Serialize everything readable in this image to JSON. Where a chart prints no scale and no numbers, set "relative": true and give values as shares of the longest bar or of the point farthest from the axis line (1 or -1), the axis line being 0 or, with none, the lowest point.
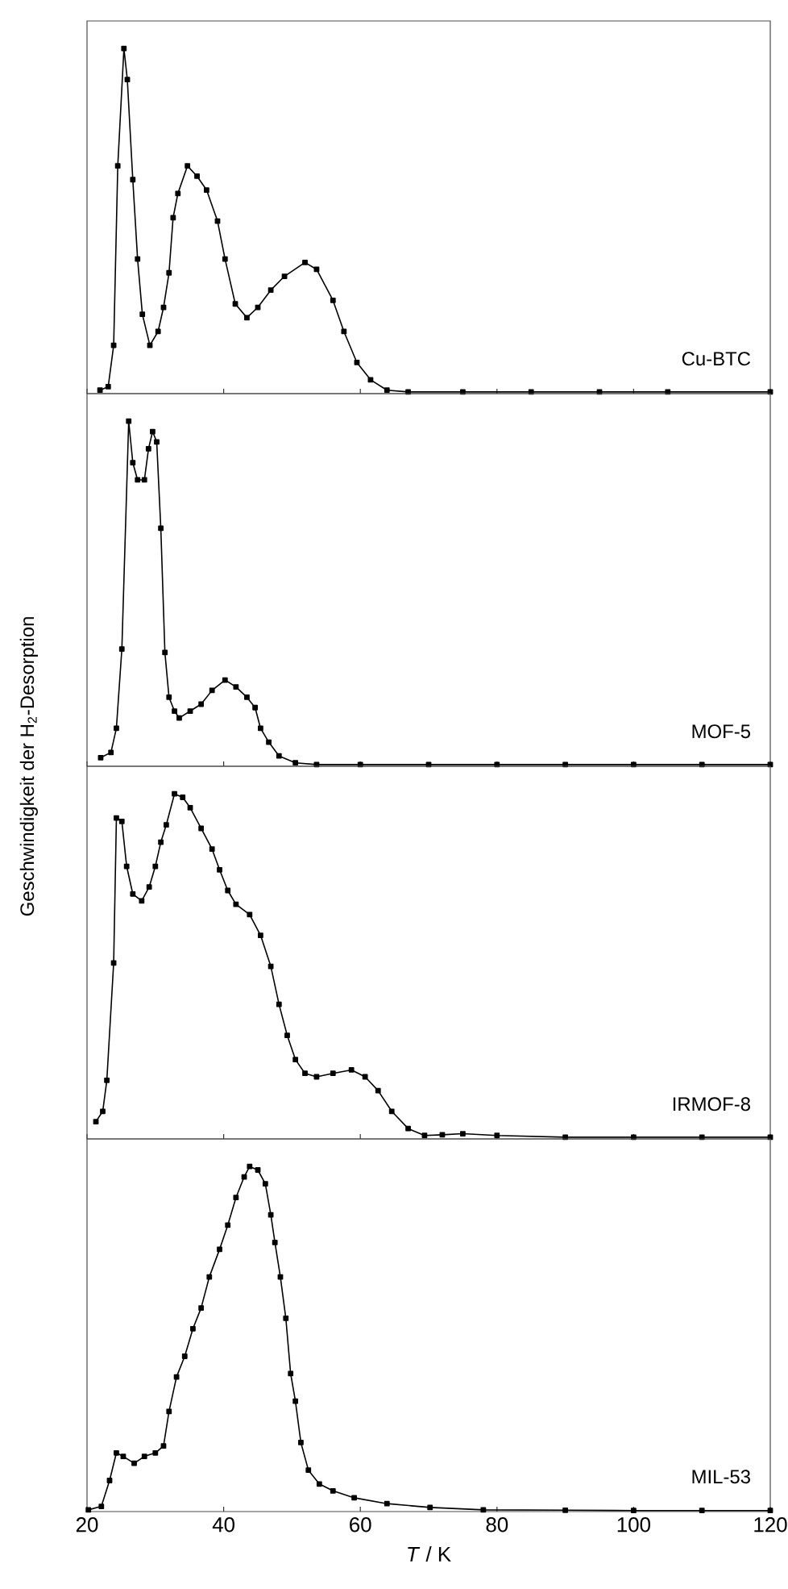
{
  "chart_data": [
    {
      "type": "line",
      "relative": true,
      "xlim": [
        20,
        120
      ],
      "xticks": [
        20,
        40,
        60,
        80,
        100,
        120
      ],
      "tick_labels": false,
      "marker": "square",
      "line_style": "solid",
      "series": [
        {
          "name": "Cu-BTC",
          "color": "#000000",
          "x": [
            21.9,
            23.1,
            23.9,
            24.5,
            25.4,
            25.9,
            26.7,
            27.4,
            28.1,
            29.2,
            30.4,
            31.2,
            32.0,
            32.6,
            33.3,
            34.7,
            36.1,
            37.5,
            39.1,
            40.2,
            41.7,
            43.4,
            45.0,
            46.9,
            48.9,
            51.9,
            53.6,
            56.0,
            57.6,
            59.5,
            61.5,
            63.9,
            67,
            75,
            85,
            95,
            105,
            120
          ],
          "values": [
            0.01,
            0.02,
            0.14,
            0.66,
            1.0,
            0.91,
            0.62,
            0.39,
            0.23,
            0.14,
            0.18,
            0.25,
            0.35,
            0.51,
            0.58,
            0.66,
            0.63,
            0.59,
            0.5,
            0.39,
            0.26,
            0.22,
            0.25,
            0.3,
            0.34,
            0.38,
            0.36,
            0.27,
            0.18,
            0.09,
            0.04,
            0.01,
            0.005,
            0.005,
            0.005,
            0.005,
            0.005,
            0.005
          ]
        }
      ]
    },
    {
      "type": "line",
      "relative": true,
      "ylabel": "Geschwindigkeit der H$_{2}$-Desorption",
      "xlim": [
        20,
        120
      ],
      "xticks": [
        20,
        40,
        60,
        80,
        100,
        120
      ],
      "tick_labels": false,
      "marker": "square",
      "line_style": "solid",
      "series": [
        {
          "name": "MOF-5",
          "color": "#000000",
          "x": [
            22.0,
            23.5,
            24.3,
            25.1,
            26.1,
            26.7,
            27.4,
            28.4,
            29.0,
            29.6,
            30.2,
            30.8,
            31.4,
            32.0,
            32.8,
            33.5,
            35.1,
            36.7,
            38.3,
            40.2,
            41.8,
            43.4,
            44.6,
            45.4,
            46.6,
            48.1,
            50.5,
            53.6,
            60,
            70,
            80,
            90,
            100,
            110,
            120
          ],
          "values": [
            0.025,
            0.04,
            0.11,
            0.34,
            1.0,
            0.88,
            0.83,
            0.83,
            0.92,
            0.97,
            0.94,
            0.69,
            0.33,
            0.2,
            0.16,
            0.14,
            0.16,
            0.18,
            0.22,
            0.25,
            0.23,
            0.2,
            0.17,
            0.11,
            0.07,
            0.03,
            0.01,
            0.005,
            0.005,
            0.005,
            0.005,
            0.005,
            0.005,
            0.005,
            0.005
          ]
        }
      ]
    },
    {
      "type": "line",
      "relative": true,
      "xlim": [
        20,
        120
      ],
      "xticks": [
        20,
        40,
        60,
        80,
        100,
        120
      ],
      "tick_labels": false,
      "marker": "square",
      "line_style": "solid",
      "series": [
        {
          "name": "IRMOF-8",
          "color": "#000000",
          "x": [
            21.3,
            22.3,
            22.9,
            23.9,
            24.3,
            25.1,
            25.8,
            26.7,
            28.0,
            29.1,
            30.0,
            30.8,
            31.6,
            32.8,
            34.0,
            35.1,
            36.7,
            38.3,
            39.4,
            40.6,
            41.8,
            43.8,
            45.4,
            46.9,
            48.1,
            49.3,
            50.5,
            51.9,
            53.6,
            56.0,
            58.7,
            60.7,
            62.6,
            64.6,
            67.0,
            69.4,
            72,
            75,
            80,
            90,
            100,
            110,
            120
          ],
          "values": [
            0.05,
            0.08,
            0.17,
            0.51,
            0.93,
            0.92,
            0.79,
            0.71,
            0.69,
            0.73,
            0.79,
            0.86,
            0.91,
            1.0,
            0.99,
            0.96,
            0.9,
            0.84,
            0.78,
            0.72,
            0.68,
            0.65,
            0.59,
            0.5,
            0.39,
            0.3,
            0.23,
            0.19,
            0.18,
            0.19,
            0.2,
            0.18,
            0.14,
            0.08,
            0.03,
            0.01,
            0.012,
            0.015,
            0.01,
            0.005,
            0.005,
            0.005,
            0.005
          ]
        }
      ]
    },
    {
      "type": "line",
      "relative": true,
      "xlabel": "*T* / K",
      "xlim": [
        20,
        120
      ],
      "xticks": [
        20,
        40,
        60,
        80,
        100,
        120
      ],
      "tick_labels": "x",
      "marker": "square",
      "line_style": "solid",
      "series": [
        {
          "name": "MIL-53",
          "color": "#000000",
          "x": [
            20.2,
            22.1,
            23.3,
            24.3,
            25.3,
            26.9,
            28.4,
            30.0,
            31.2,
            32.0,
            33.1,
            34.3,
            35.5,
            36.7,
            37.9,
            39.4,
            40.6,
            41.8,
            43.0,
            43.8,
            45.0,
            46.1,
            46.9,
            47.5,
            48.3,
            49.1,
            49.8,
            50.5,
            51.3,
            52.4,
            54.0,
            56.0,
            59.1,
            63.9,
            70.2,
            78,
            90,
            100,
            110,
            120
          ],
          "values": [
            0.005,
            0.015,
            0.09,
            0.17,
            0.16,
            0.14,
            0.16,
            0.17,
            0.19,
            0.29,
            0.39,
            0.45,
            0.53,
            0.59,
            0.68,
            0.76,
            0.83,
            0.91,
            0.97,
            1.0,
            0.99,
            0.95,
            0.86,
            0.78,
            0.68,
            0.56,
            0.4,
            0.32,
            0.2,
            0.12,
            0.08,
            0.06,
            0.04,
            0.023,
            0.012,
            0.005,
            0.004,
            0.003,
            0.003,
            0.003
          ]
        }
      ]
    }
  ]
}
